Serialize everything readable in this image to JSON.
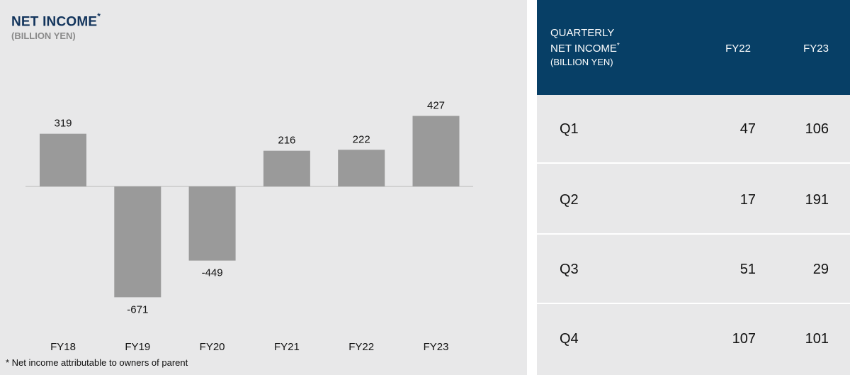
{
  "chart_data": {
    "type": "bar",
    "title": "NET INCOME",
    "title_marker": "*",
    "subtitle": "(BILLION YEN)",
    "categories": [
      "FY18",
      "FY19",
      "FY20",
      "FY21",
      "FY22",
      "FY23"
    ],
    "values": [
      319,
      -671,
      -449,
      216,
      222,
      427
    ],
    "value_labels": [
      "319",
      "-671",
      "-449",
      "216",
      "222",
      "427"
    ],
    "ylim": [
      -671,
      427
    ],
    "grid": false,
    "bar_color": "#9a9a9a",
    "footnote": "* Net income attributable to owners of parent"
  },
  "table": {
    "title_line1": "QUARTERLY",
    "title_line2": "NET INCOME",
    "title_marker": "*",
    "unit": "(BILLION YEN)",
    "columns": [
      "FY22",
      "FY23"
    ],
    "rows": [
      {
        "quarter": "Q1",
        "fy22": "47",
        "fy23": "106"
      },
      {
        "quarter": "Q2",
        "fy22": "17",
        "fy23": "191"
      },
      {
        "quarter": "Q3",
        "fy22": "51",
        "fy23": "29"
      },
      {
        "quarter": "Q4",
        "fy22": "107",
        "fy23": "101"
      }
    ],
    "header_color": "#073f66"
  }
}
